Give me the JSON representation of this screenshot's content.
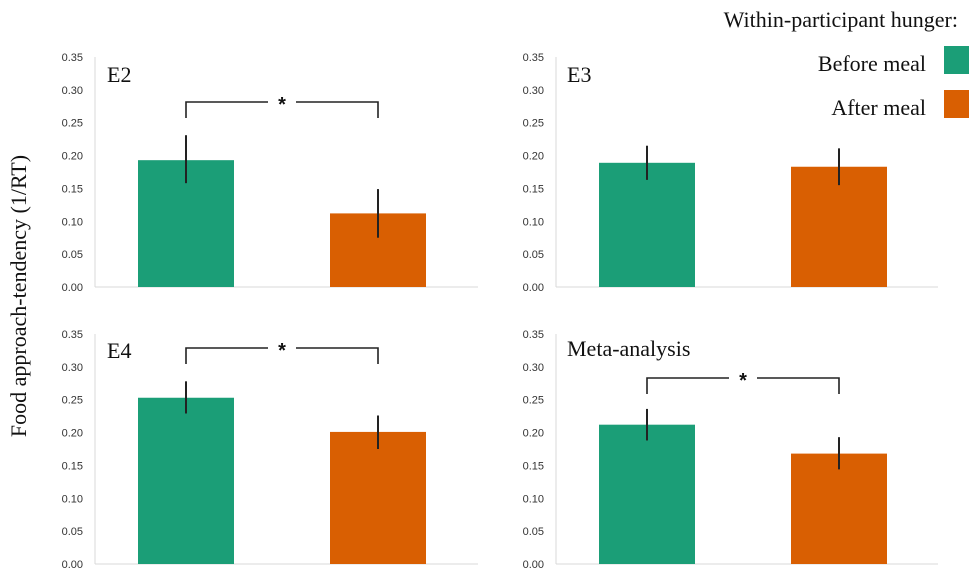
{
  "legend": {
    "title": "Within-participant hunger:",
    "items": [
      {
        "label": "Before meal",
        "color": "#1b9e77"
      },
      {
        "label": "After meal",
        "color": "#d95f02"
      }
    ]
  },
  "ylabel": "Food approach-tendency (1/RT)",
  "chart_data": [
    {
      "type": "bar",
      "title": "E2",
      "categories": [
        "Before meal",
        "After meal"
      ],
      "series": [
        {
          "values": [
            0.193,
            0.112
          ]
        }
      ],
      "error_low": [
        0.158,
        0.075
      ],
      "error_high": [
        0.231,
        0.149
      ],
      "significance": "*",
      "ylim": [
        0,
        0.35
      ],
      "yticks": [
        "0.00",
        "0.05",
        "0.10",
        "0.15",
        "0.20",
        "0.25",
        "0.30",
        "0.35"
      ]
    },
    {
      "type": "bar",
      "title": "E3",
      "categories": [
        "Before meal",
        "After meal"
      ],
      "series": [
        {
          "values": [
            0.189,
            0.183
          ]
        }
      ],
      "error_low": [
        0.163,
        0.155
      ],
      "error_high": [
        0.215,
        0.211
      ],
      "significance": "",
      "ylim": [
        0,
        0.35
      ],
      "yticks": [
        "0.00",
        "0.05",
        "0.10",
        "0.15",
        "0.20",
        "0.25",
        "0.30",
        "0.35"
      ]
    },
    {
      "type": "bar",
      "title": "E4",
      "categories": [
        "Before meal",
        "After meal"
      ],
      "series": [
        {
          "values": [
            0.253,
            0.201
          ]
        }
      ],
      "error_low": [
        0.229,
        0.175
      ],
      "error_high": [
        0.278,
        0.226
      ],
      "significance": "*",
      "ylim": [
        0,
        0.35
      ],
      "yticks": [
        "0.00",
        "0.05",
        "0.10",
        "0.15",
        "0.20",
        "0.25",
        "0.30",
        "0.35"
      ]
    },
    {
      "type": "bar",
      "title": "Meta-analysis",
      "categories": [
        "Before meal",
        "After meal"
      ],
      "series": [
        {
          "values": [
            0.212,
            0.168
          ]
        }
      ],
      "error_low": [
        0.188,
        0.144
      ],
      "error_high": [
        0.236,
        0.193
      ],
      "significance": "*",
      "ylim": [
        0,
        0.35
      ],
      "yticks": [
        "0.00",
        "0.05",
        "0.10",
        "0.15",
        "0.20",
        "0.25",
        "0.30",
        "0.35"
      ]
    }
  ]
}
